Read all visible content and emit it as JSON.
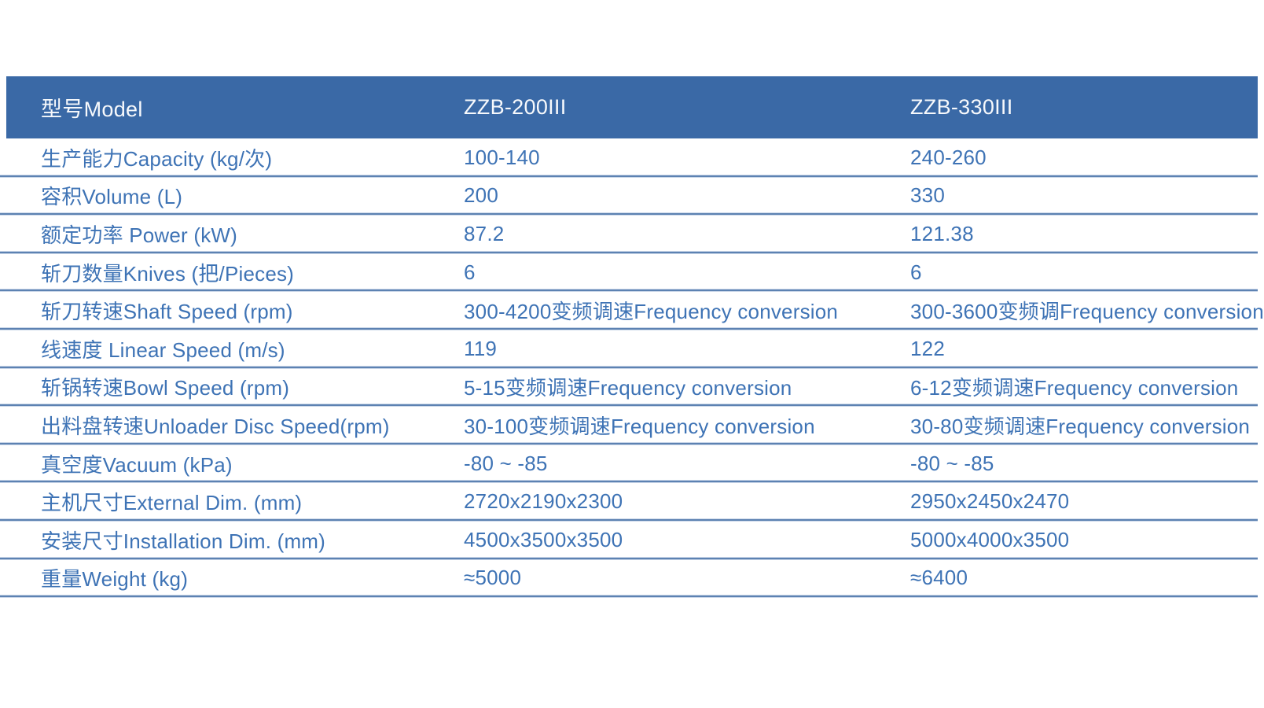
{
  "table": {
    "header": {
      "model_label": "型号Model",
      "model_a": "ZZB-200III",
      "model_b": "ZZB-330III"
    },
    "rows": [
      {
        "label": "生产能力Capacity (kg/次)",
        "zzb200": "100-140",
        "zzb330": "240-260"
      },
      {
        "label": "容积Volume (L)",
        "zzb200": "200",
        "zzb330": "330"
      },
      {
        "label": "额定功率 Power (kW)",
        "zzb200": "87.2",
        "zzb330": "121.38"
      },
      {
        "label": "斩刀数量Knives (把/Pieces)",
        "zzb200": "6",
        "zzb330": "6"
      },
      {
        "label": "斩刀转速Shaft Speed (rpm)",
        "zzb200": "300-4200变频调速Frequency conversion",
        "zzb330": "300-3600变频调Frequency conversion"
      },
      {
        "label": "线速度 Linear Speed (m/s)",
        "zzb200": "119",
        "zzb330": "122"
      },
      {
        "label": "斩锅转速Bowl Speed (rpm)",
        "zzb200": "5-15变频调速Frequency conversion",
        "zzb330": "6-12变频调速Frequency conversion"
      },
      {
        "label": "出料盘转速Unloader Disc Speed(rpm)",
        "zzb200": "30-100变频调速Frequency conversion",
        "zzb330": "30-80变频调速Frequency conversion"
      },
      {
        "label": "真空度Vacuum (kPa)",
        "zzb200": "-80 ~ -85",
        "zzb330": "-80 ~ -85"
      },
      {
        "label": "主机尺寸External Dim. (mm)",
        "zzb200": "2720x2190x2300",
        "zzb330": "2950x2450x2470"
      },
      {
        "label": "安装尺寸Installation Dim. (mm)",
        "zzb200": "4500x3500x3500",
        "zzb330": "5000x4000x3500"
      },
      {
        "label": "重量Weight (kg)",
        "zzb200": "≈5000",
        "zzb330": "≈6400"
      }
    ],
    "colors": {
      "header_bg": "#3A69A6",
      "header_text": "#F7F9FC",
      "body_text": "#3E73B5",
      "divider": "#5d82b2",
      "divider_halo": "#c9d6e8",
      "page_bg": "#ffffff"
    }
  }
}
